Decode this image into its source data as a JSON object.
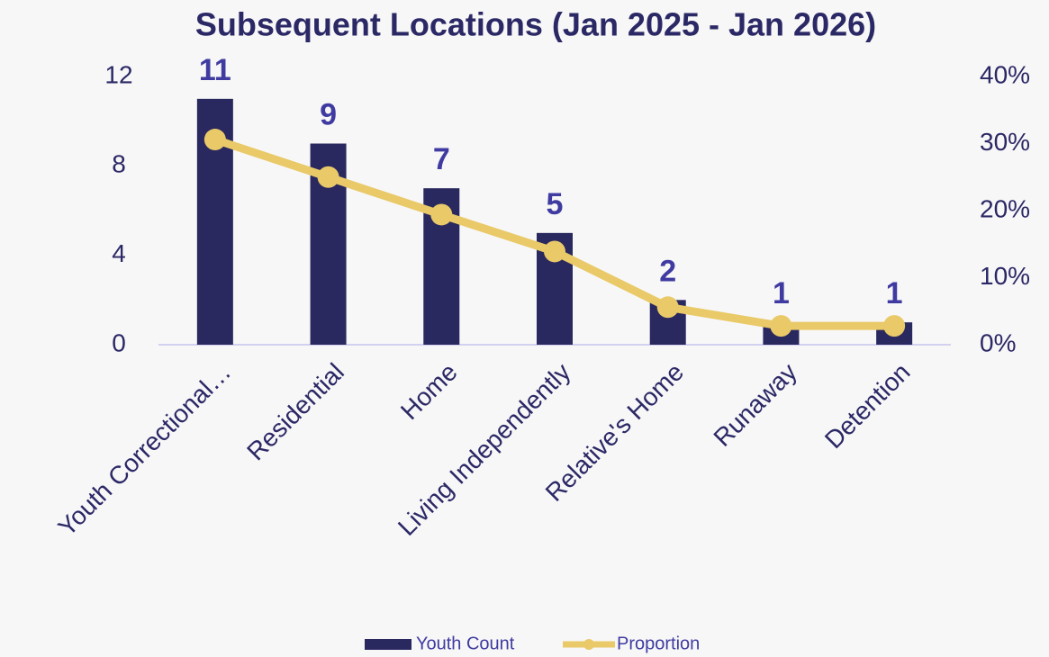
{
  "chart_data": {
    "type": "bar",
    "title": "Subsequent Locations (Jan 2025 - Jan 2026)",
    "categories": [
      "Youth Correctional…",
      "Residential",
      "Home",
      "Living Independently",
      "Relative's Home",
      "Runaway",
      "Detention"
    ],
    "series": [
      {
        "name": "Youth Count",
        "type": "bar",
        "color": "#29285f",
        "values": [
          11,
          9,
          7,
          5,
          2,
          1,
          1
        ]
      },
      {
        "name": "Proportion",
        "type": "line",
        "axis": "y2",
        "color": "#e9c968",
        "values": [
          30.6,
          25,
          19.4,
          13.9,
          5.6,
          2.8,
          2.8
        ]
      }
    ],
    "ylim": [
      0,
      12
    ],
    "yticks": [
      0,
      4,
      8,
      12
    ],
    "y2lim": [
      0,
      40
    ],
    "y2ticks": [
      {
        "value": 0,
        "label": "0%"
      },
      {
        "value": 10,
        "label": "10%"
      },
      {
        "value": 20,
        "label": "20%"
      },
      {
        "value": 30,
        "label": "30%"
      },
      {
        "value": 40,
        "label": "40%"
      }
    ],
    "legend": "bottom"
  }
}
